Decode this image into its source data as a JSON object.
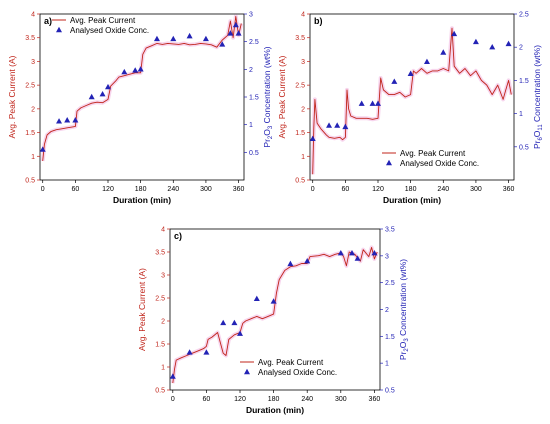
{
  "colors": {
    "current": "#c0251b",
    "oxide": "#2323b5",
    "halo": "#f3c3e6",
    "text": "#000000"
  },
  "chart_data": [
    {
      "panel_label": "a)",
      "type": "line",
      "xlabel": "Duration (min)",
      "ylabel_left": "Avg. Peak Current (A)",
      "ylabel_right": {
        "pre": "Pr",
        "sub1": "2",
        "mid": "O",
        "sub2": "3",
        "post": " Concentration (wt%)"
      },
      "xlim": [
        -5,
        370
      ],
      "ylim_left": [
        0.5,
        4.0
      ],
      "ylim_right": [
        0.0,
        3.0
      ],
      "xticks": [
        0,
        60,
        120,
        180,
        240,
        300,
        360
      ],
      "yticks_left": [
        0.5,
        1.0,
        1.5,
        2.0,
        2.5,
        3.0,
        3.5,
        4.0
      ],
      "yticks_right": [
        0.5,
        1.0,
        1.5,
        2.0,
        2.5,
        3.0
      ],
      "legend": {
        "position": "upper-left",
        "series_current": "Avg. Peak Current",
        "series_oxide": "Analysed Oxide Conc."
      },
      "series_current": [
        [
          0,
          0.9
        ],
        [
          3,
          1.25
        ],
        [
          8,
          1.45
        ],
        [
          15,
          1.52
        ],
        [
          25,
          1.56
        ],
        [
          35,
          1.58
        ],
        [
          45,
          1.6
        ],
        [
          55,
          1.62
        ],
        [
          60,
          1.63
        ],
        [
          63,
          1.95
        ],
        [
          70,
          2.02
        ],
        [
          80,
          2.07
        ],
        [
          90,
          2.12
        ],
        [
          100,
          2.14
        ],
        [
          110,
          2.13
        ],
        [
          120,
          2.2
        ],
        [
          125,
          2.48
        ],
        [
          135,
          2.6
        ],
        [
          140,
          2.67
        ],
        [
          150,
          2.7
        ],
        [
          160,
          2.73
        ],
        [
          170,
          2.76
        ],
        [
          180,
          2.76
        ],
        [
          184,
          3.15
        ],
        [
          190,
          3.28
        ],
        [
          200,
          3.33
        ],
        [
          210,
          3.38
        ],
        [
          220,
          3.36
        ],
        [
          230,
          3.38
        ],
        [
          240,
          3.37
        ],
        [
          250,
          3.36
        ],
        [
          260,
          3.38
        ],
        [
          270,
          3.35
        ],
        [
          280,
          3.36
        ],
        [
          290,
          3.38
        ],
        [
          300,
          3.37
        ],
        [
          310,
          3.35
        ],
        [
          320,
          3.3
        ],
        [
          330,
          3.45
        ],
        [
          340,
          3.55
        ],
        [
          345,
          3.85
        ],
        [
          350,
          3.5
        ],
        [
          355,
          3.95
        ],
        [
          360,
          3.55
        ],
        [
          365,
          3.8
        ]
      ],
      "series_oxide": [
        [
          0,
          0.55
        ],
        [
          30,
          1.06
        ],
        [
          45,
          1.08
        ],
        [
          60,
          1.08
        ],
        [
          90,
          1.5
        ],
        [
          110,
          1.55
        ],
        [
          120,
          1.68
        ],
        [
          150,
          1.95
        ],
        [
          170,
          1.98
        ],
        [
          180,
          2.0
        ],
        [
          210,
          2.55
        ],
        [
          240,
          2.55
        ],
        [
          270,
          2.6
        ],
        [
          300,
          2.55
        ],
        [
          330,
          2.45
        ],
        [
          345,
          2.65
        ],
        [
          355,
          2.8
        ],
        [
          360,
          2.65
        ]
      ]
    },
    {
      "panel_label": "b)",
      "type": "line",
      "xlabel": "Duration (min)",
      "ylabel_left": "Avg. Peak Current (A)",
      "ylabel_right": {
        "pre": "Pr",
        "sub1": "6",
        "mid": "O",
        "sub2": "11",
        "post": " Concentration (wt%)"
      },
      "xlim": [
        -5,
        370
      ],
      "ylim_left": [
        0.5,
        4.0
      ],
      "ylim_right": [
        0.0,
        2.5
      ],
      "xticks": [
        0,
        60,
        120,
        180,
        240,
        300,
        360
      ],
      "yticks_left": [
        0.5,
        1.0,
        1.5,
        2.0,
        2.5,
        3.0,
        3.5,
        4.0
      ],
      "yticks_right": [
        0.5,
        1.0,
        1.5,
        2.0,
        2.5
      ],
      "legend": {
        "position": "lower-right",
        "series_current": "Avg. Peak Current",
        "series_oxide": "Analysed Oxide Conc."
      },
      "series_current": [
        [
          0,
          0.62
        ],
        [
          2,
          1.6
        ],
        [
          4,
          2.2
        ],
        [
          8,
          1.7
        ],
        [
          15,
          1.58
        ],
        [
          25,
          1.45
        ],
        [
          30,
          1.4
        ],
        [
          40,
          1.38
        ],
        [
          50,
          1.4
        ],
        [
          55,
          1.35
        ],
        [
          60,
          1.4
        ],
        [
          63,
          2.4
        ],
        [
          66,
          2.0
        ],
        [
          70,
          1.85
        ],
        [
          80,
          1.8
        ],
        [
          100,
          1.8
        ],
        [
          110,
          1.78
        ],
        [
          120,
          1.8
        ],
        [
          125,
          2.65
        ],
        [
          130,
          2.4
        ],
        [
          140,
          2.3
        ],
        [
          150,
          2.3
        ],
        [
          160,
          2.35
        ],
        [
          170,
          2.25
        ],
        [
          180,
          2.3
        ],
        [
          185,
          2.8
        ],
        [
          190,
          2.75
        ],
        [
          200,
          2.85
        ],
        [
          210,
          2.75
        ],
        [
          220,
          2.8
        ],
        [
          230,
          2.8
        ],
        [
          240,
          2.85
        ],
        [
          250,
          2.8
        ],
        [
          256,
          3.7
        ],
        [
          260,
          2.9
        ],
        [
          270,
          2.75
        ],
        [
          280,
          2.85
        ],
        [
          290,
          2.7
        ],
        [
          300,
          2.8
        ],
        [
          310,
          2.6
        ],
        [
          320,
          2.5
        ],
        [
          330,
          2.3
        ],
        [
          340,
          2.5
        ],
        [
          350,
          2.2
        ],
        [
          355,
          2.4
        ],
        [
          360,
          2.6
        ],
        [
          365,
          2.3
        ]
      ],
      "series_oxide": [
        [
          0,
          0.62
        ],
        [
          30,
          0.82
        ],
        [
          45,
          0.82
        ],
        [
          60,
          0.8
        ],
        [
          90,
          1.15
        ],
        [
          110,
          1.15
        ],
        [
          120,
          1.15
        ],
        [
          150,
          1.48
        ],
        [
          180,
          1.6
        ],
        [
          210,
          1.78
        ],
        [
          240,
          1.92
        ],
        [
          260,
          2.2
        ],
        [
          300,
          2.08
        ],
        [
          330,
          2.0
        ],
        [
          360,
          2.05
        ]
      ]
    },
    {
      "panel_label": "c)",
      "type": "line",
      "xlabel": "Duration (min)",
      "ylabel_left": "Avg. Peak Current (A)",
      "ylabel_right": {
        "pre": "Pr",
        "sub1": "2",
        "mid": "O",
        "sub2": "3",
        "post": " Concentration (wt%)"
      },
      "xlim": [
        -5,
        370
      ],
      "ylim_left": [
        0.5,
        4.0
      ],
      "ylim_right": [
        0.5,
        3.5
      ],
      "xticks": [
        0,
        60,
        120,
        180,
        240,
        300,
        360
      ],
      "yticks_left": [
        0.5,
        1.0,
        1.5,
        2.0,
        2.5,
        3.0,
        3.5,
        4.0
      ],
      "yticks_right": [
        0.5,
        1.0,
        1.5,
        2.0,
        2.5,
        3.0,
        3.5
      ],
      "legend": {
        "position": "lower-right",
        "series_current": "Avg. Peak Current",
        "series_oxide": "Analysed Oxide Conc."
      },
      "series_current": [
        [
          0,
          0.65
        ],
        [
          3,
          0.95
        ],
        [
          6,
          1.15
        ],
        [
          15,
          1.2
        ],
        [
          25,
          1.25
        ],
        [
          35,
          1.3
        ],
        [
          45,
          1.35
        ],
        [
          55,
          1.4
        ],
        [
          60,
          1.45
        ],
        [
          63,
          1.6
        ],
        [
          70,
          1.65
        ],
        [
          80,
          1.75
        ],
        [
          90,
          1.3
        ],
        [
          95,
          1.25
        ],
        [
          100,
          1.6
        ],
        [
          110,
          1.7
        ],
        [
          120,
          1.75
        ],
        [
          125,
          1.95
        ],
        [
          130,
          2.0
        ],
        [
          140,
          2.05
        ],
        [
          150,
          2.1
        ],
        [
          160,
          2.05
        ],
        [
          170,
          2.1
        ],
        [
          180,
          2.15
        ],
        [
          185,
          2.6
        ],
        [
          190,
          2.9
        ],
        [
          200,
          3.1
        ],
        [
          210,
          3.18
        ],
        [
          220,
          3.2
        ],
        [
          230,
          3.25
        ],
        [
          240,
          3.25
        ],
        [
          245,
          3.4
        ],
        [
          260,
          3.42
        ],
        [
          270,
          3.45
        ],
        [
          280,
          3.4
        ],
        [
          290,
          3.45
        ],
        [
          300,
          3.48
        ],
        [
          305,
          3.4
        ],
        [
          310,
          3.2
        ],
        [
          315,
          3.5
        ],
        [
          325,
          3.45
        ],
        [
          335,
          3.3
        ],
        [
          340,
          3.55
        ],
        [
          350,
          3.4
        ],
        [
          355,
          3.6
        ],
        [
          360,
          3.35
        ],
        [
          365,
          3.5
        ]
      ],
      "series_oxide": [
        [
          0,
          0.75
        ],
        [
          30,
          1.2
        ],
        [
          60,
          1.2
        ],
        [
          90,
          1.75
        ],
        [
          110,
          1.75
        ],
        [
          120,
          1.55
        ],
        [
          150,
          2.2
        ],
        [
          180,
          2.15
        ],
        [
          210,
          2.85
        ],
        [
          240,
          2.9
        ],
        [
          300,
          3.05
        ],
        [
          320,
          3.05
        ],
        [
          330,
          2.95
        ],
        [
          360,
          3.05
        ]
      ]
    }
  ]
}
